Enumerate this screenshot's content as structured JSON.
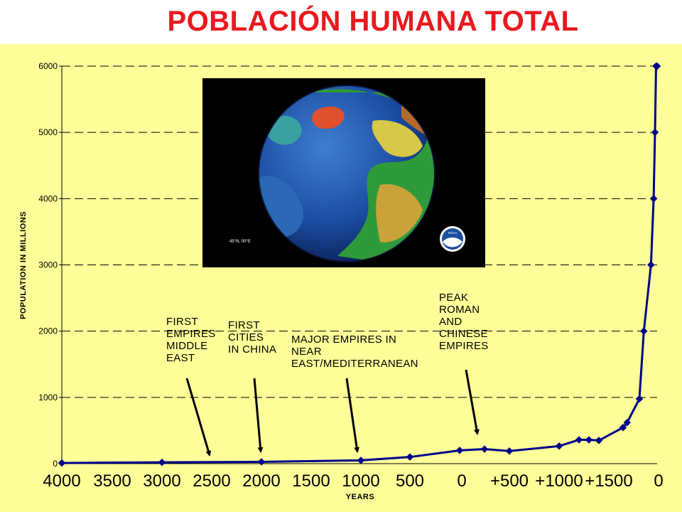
{
  "title": "POBLACIÓN HUMANA TOTAL",
  "colors": {
    "title": "#e8191f",
    "background": "#ffff99",
    "series": "#00008b"
  },
  "photo": {
    "caption": "45°N, 00°E",
    "logo": "NOAA",
    "icon": "globe-icon"
  },
  "chart_data": {
    "type": "line",
    "ylabel": "POPULATION IN MILLIONS",
    "xlabel": "YEARS",
    "ylim": [
      0,
      6000
    ],
    "y_ticks": [
      "0",
      "1000",
      "2000",
      "3000",
      "4000",
      "5000",
      "6000"
    ],
    "x_tick_labels": [
      "4000",
      "3500",
      "3000",
      "2500",
      "2000",
      "1500",
      "1000",
      "500",
      "0",
      "+500",
      "+1000",
      "+1500",
      "0"
    ],
    "grid": "horizontal dashed",
    "series": [
      {
        "x": [
          -4000,
          -3000,
          -2000,
          -1000,
          -500,
          0,
          200,
          400,
          1000,
          1200,
          1300,
          1400,
          1600,
          1650,
          1800,
          1850,
          1930,
          1960,
          1975,
          1987,
          1999
        ],
        "values": [
          10,
          20,
          27,
          50,
          100,
          200,
          220,
          190,
          265,
          360,
          360,
          350,
          545,
          620,
          978,
          2000,
          3000,
          4000,
          5000,
          6000,
          6000
        ]
      }
    ],
    "annotations": [
      {
        "lines": [
          "FIRST",
          "EMPIRES",
          "MIDDLE",
          "EAST"
        ]
      },
      {
        "lines": [
          "FIRST",
          "CITIES",
          "IN CHINA"
        ]
      },
      {
        "lines": [
          "MAJOR EMPIRES IN",
          "NEAR",
          "EAST/MEDITERRANEAN"
        ]
      },
      {
        "lines": [
          "PEAK",
          "ROMAN",
          "AND",
          "CHINESE",
          "EMPIRES"
        ]
      }
    ]
  }
}
